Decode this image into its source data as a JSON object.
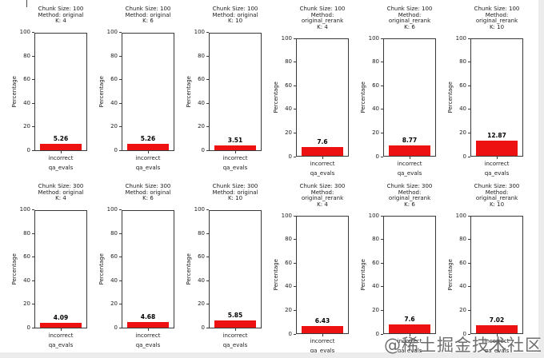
{
  "watermark": "@稀土掘金技术社区",
  "axis": {
    "ylabel": "Percentage",
    "yticks": [
      0,
      20,
      40,
      60,
      80,
      100
    ],
    "category": "incorrect",
    "xlabel": "qa_evals"
  },
  "bar_color": "#ee1111",
  "chart_data": [
    {
      "type": "bar",
      "title_lines": [
        "Chunk Size: 100",
        "Method: original",
        "K: 4"
      ],
      "categories": [
        "incorrect"
      ],
      "values": [
        5.26
      ],
      "xlabel": "qa_evals",
      "ylabel": "Percentage",
      "ylim": [
        0,
        100
      ]
    },
    {
      "type": "bar",
      "title_lines": [
        "Chunk Size: 100",
        "Method: original",
        "K: 6"
      ],
      "categories": [
        "incorrect"
      ],
      "values": [
        5.26
      ],
      "xlabel": "qa_evals",
      "ylabel": "Percentage",
      "ylim": [
        0,
        100
      ]
    },
    {
      "type": "bar",
      "title_lines": [
        "Chunk Size: 100",
        "Method: original",
        "K: 10"
      ],
      "categories": [
        "incorrect"
      ],
      "values": [
        3.51
      ],
      "xlabel": "qa_evals",
      "ylabel": "Percentage",
      "ylim": [
        0,
        100
      ]
    },
    {
      "type": "bar",
      "title_lines": [
        "Chunk Size: 100",
        "Method: original_rerank",
        "K: 4"
      ],
      "categories": [
        "incorrect"
      ],
      "values": [
        7.6
      ],
      "xlabel": "qa_evals",
      "ylabel": "Percentage",
      "ylim": [
        0,
        100
      ]
    },
    {
      "type": "bar",
      "title_lines": [
        "Chunk Size: 100",
        "Method: original_rerank",
        "K: 6"
      ],
      "categories": [
        "incorrect"
      ],
      "values": [
        8.77
      ],
      "xlabel": "qa_evals",
      "ylabel": "Percentage",
      "ylim": [
        0,
        100
      ]
    },
    {
      "type": "bar",
      "title_lines": [
        "Chunk Size: 100",
        "Method: original_rerank",
        "K: 10"
      ],
      "categories": [
        "incorrect"
      ],
      "values": [
        12.87
      ],
      "xlabel": "qa_evals",
      "ylabel": "Percentage",
      "ylim": [
        0,
        100
      ]
    },
    {
      "type": "bar",
      "title_lines": [
        "Chunk Size: 300",
        "Method: original",
        "K: 4"
      ],
      "categories": [
        "incorrect"
      ],
      "values": [
        4.09
      ],
      "xlabel": "qa_evals",
      "ylabel": "Percentage",
      "ylim": [
        0,
        100
      ]
    },
    {
      "type": "bar",
      "title_lines": [
        "Chunk Size: 300",
        "Method: original",
        "K: 6"
      ],
      "categories": [
        "incorrect"
      ],
      "values": [
        4.68
      ],
      "xlabel": "qa_evals",
      "ylabel": "Percentage",
      "ylim": [
        0,
        100
      ]
    },
    {
      "type": "bar",
      "title_lines": [
        "Chunk Size: 300",
        "Method: original",
        "K: 10"
      ],
      "categories": [
        "incorrect"
      ],
      "values": [
        5.85
      ],
      "xlabel": "qa_evals",
      "ylabel": "Percentage",
      "ylim": [
        0,
        100
      ]
    },
    {
      "type": "bar",
      "title_lines": [
        "Chunk Size: 300",
        "Method: original_rerank",
        "K: 4"
      ],
      "categories": [
        "incorrect"
      ],
      "values": [
        6.43
      ],
      "xlabel": "qa_evals",
      "ylabel": "Percentage",
      "ylim": [
        0,
        100
      ]
    },
    {
      "type": "bar",
      "title_lines": [
        "Chunk Size: 300",
        "Method: original_rerank",
        "K: 6"
      ],
      "categories": [
        "incorrect"
      ],
      "values": [
        7.6
      ],
      "xlabel": "qa_evals",
      "ylabel": "Percentage",
      "ylim": [
        0,
        100
      ]
    },
    {
      "type": "bar",
      "title_lines": [
        "Chunk Size: 300",
        "Method: original_rerank",
        "K: 10"
      ],
      "categories": [
        "incorrect"
      ],
      "values": [
        7.02
      ],
      "xlabel": "qa_evals",
      "ylabel": "Percentage",
      "ylim": [
        0,
        100
      ]
    }
  ]
}
